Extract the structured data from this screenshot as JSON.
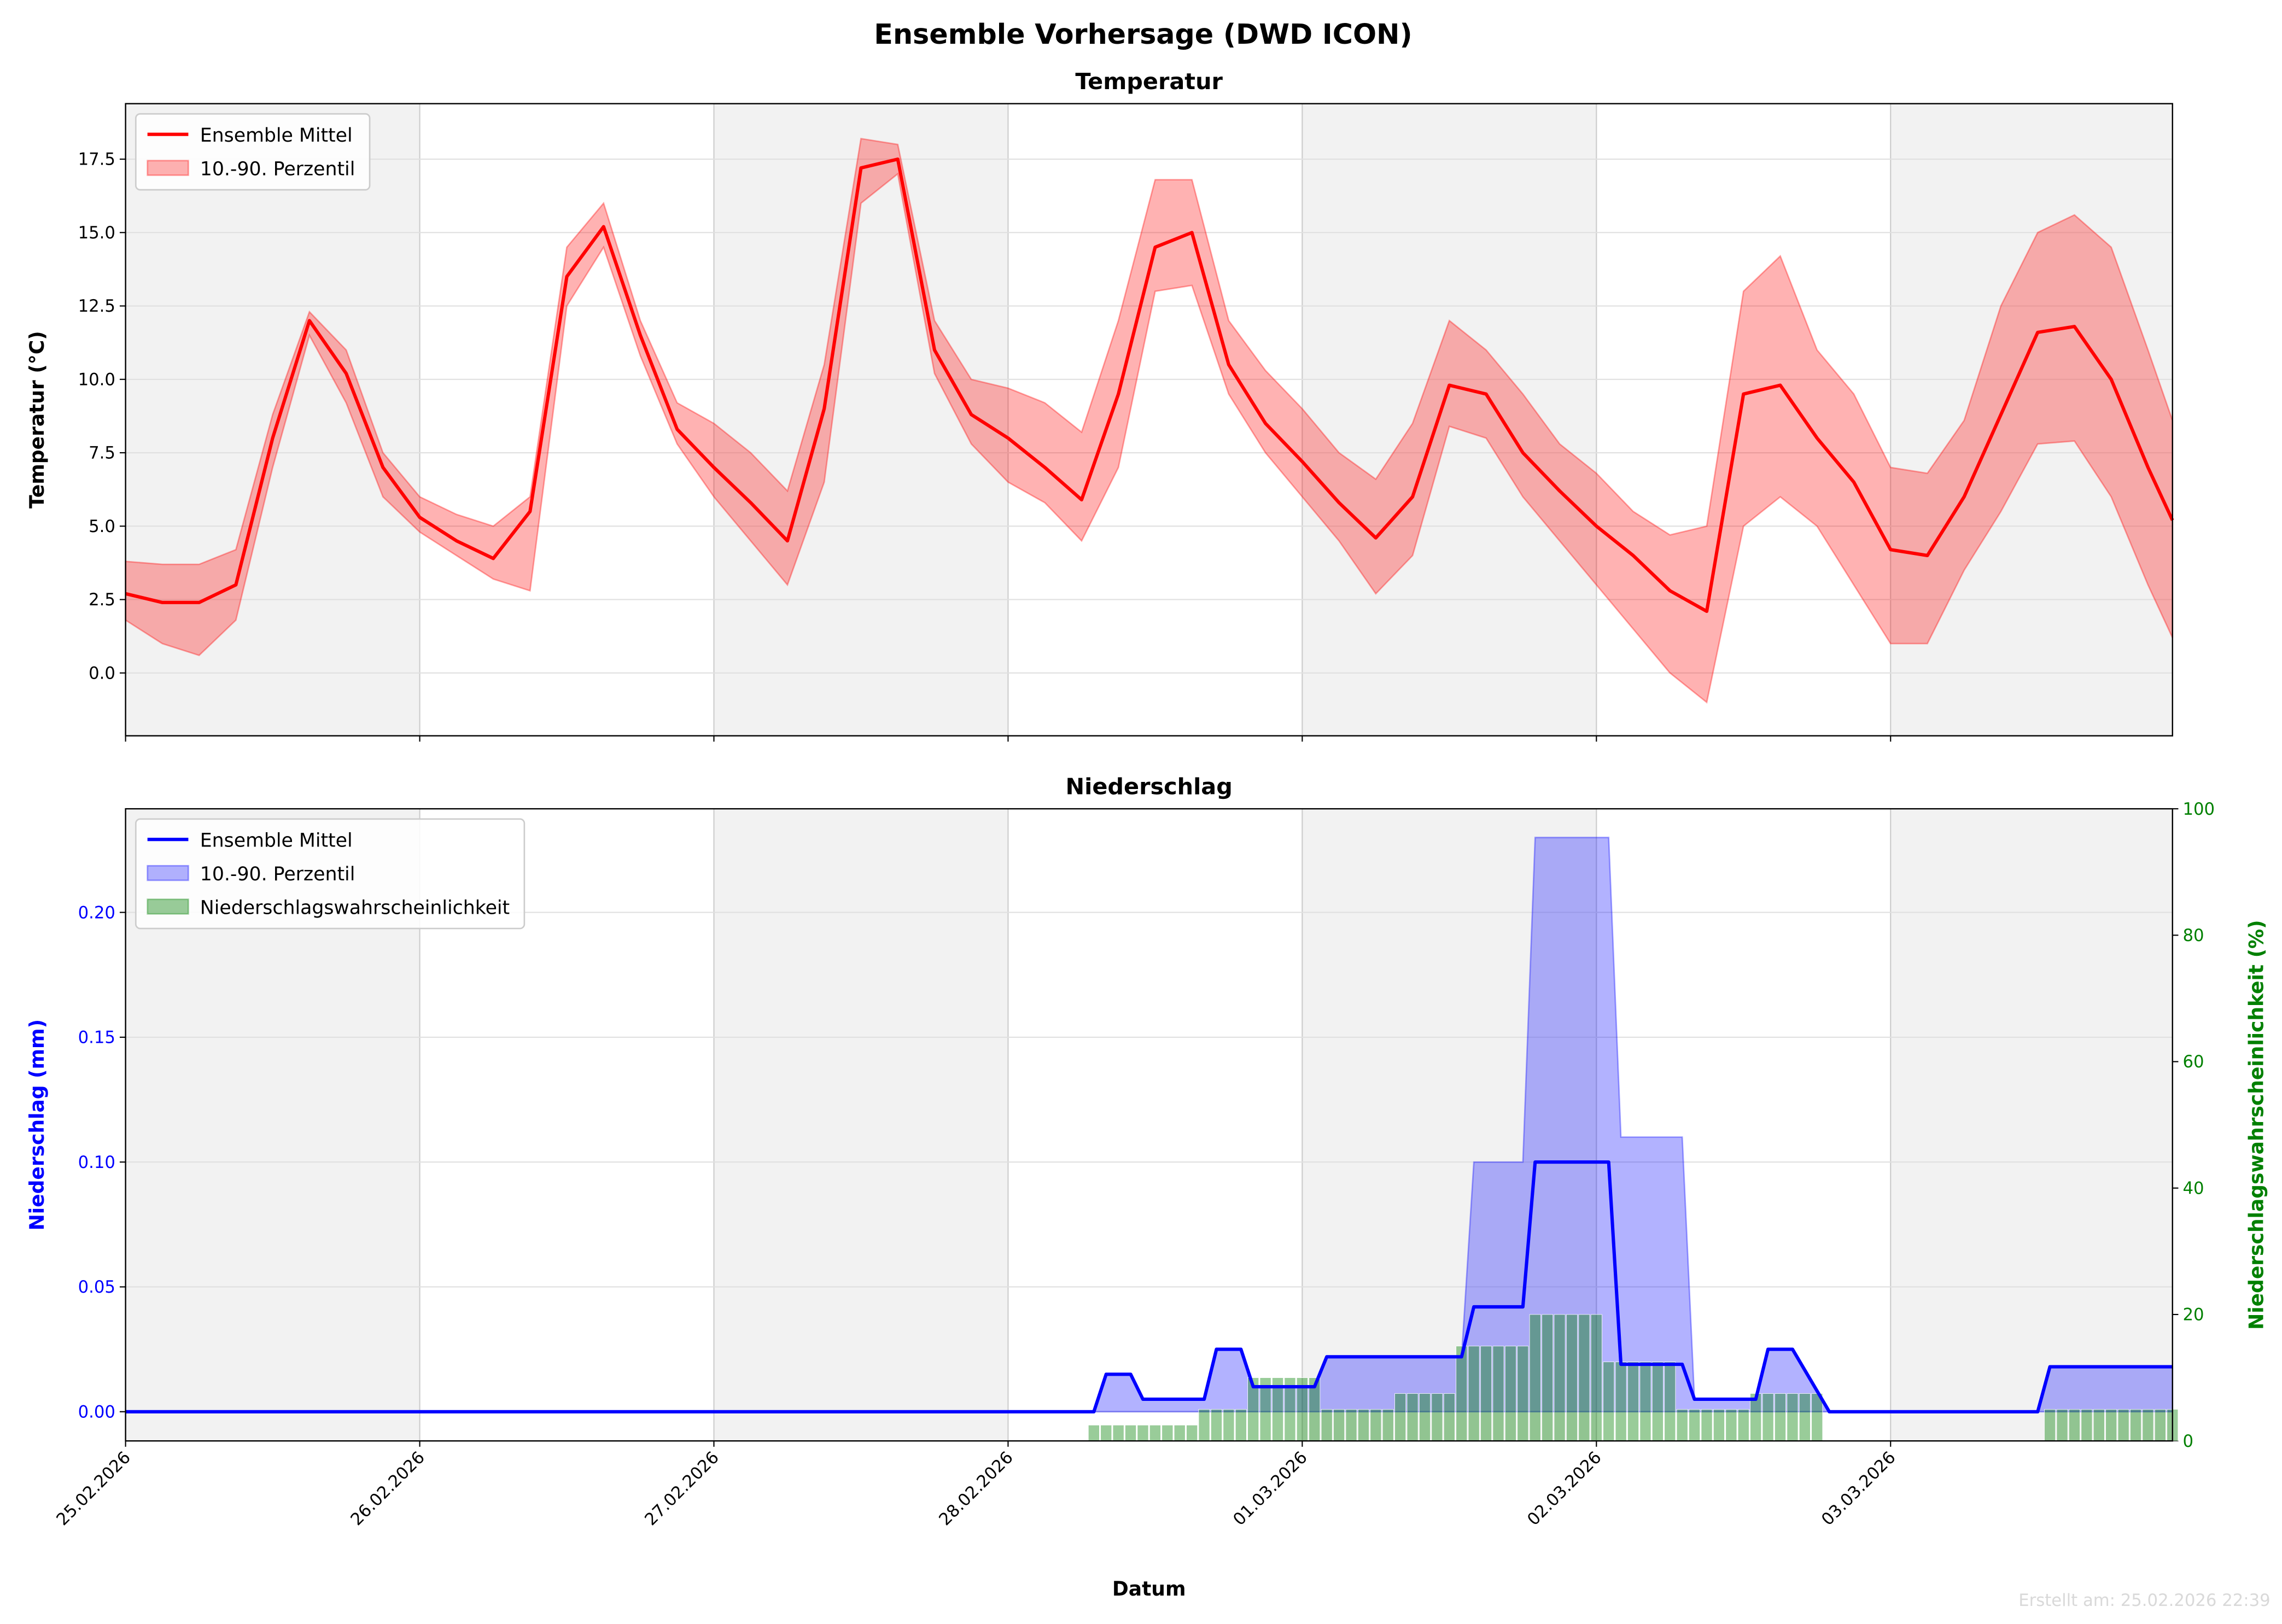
{
  "title": "Ensemble Vorhersage (DWD ICON)",
  "x_label": "Datum",
  "footer": "Erstellt am: 25.02.2026 22:39",
  "chart_data": [
    {
      "type": "line",
      "title": "Temperatur",
      "y_label": "Temperatur (°C)",
      "legend": "upper left",
      "grid": true,
      "x": [
        0,
        3,
        6,
        9,
        12,
        15,
        18,
        21,
        24,
        27,
        30,
        33,
        36,
        39,
        42,
        45,
        48,
        51,
        54,
        57,
        60,
        63,
        66,
        69,
        72,
        75,
        78,
        81,
        84,
        87,
        90,
        93,
        96,
        99,
        102,
        105,
        108,
        111,
        114,
        117,
        120,
        123,
        126,
        129,
        132,
        135,
        138,
        141,
        144,
        147,
        150,
        153,
        156,
        159,
        162,
        165,
        167
      ],
      "xlim": [
        0,
        167
      ],
      "xticks": [
        {
          "value": 0,
          "label": "25.02.2026"
        },
        {
          "value": 24,
          "label": "26.02.2026"
        },
        {
          "value": 48,
          "label": "27.02.2026"
        },
        {
          "value": 72,
          "label": "28.02.2026"
        },
        {
          "value": 96,
          "label": "01.03.2026"
        },
        {
          "value": 120,
          "label": "02.03.2026"
        },
        {
          "value": 144,
          "label": "03.03.2026"
        }
      ],
      "ylim": [
        -2.14,
        19.39
      ],
      "yticks": [
        {
          "value": 0,
          "label": "0.0"
        },
        2.5,
        {
          "value": 5,
          "label": "5.0"
        },
        7.5,
        {
          "value": 10,
          "label": "10.0"
        },
        12.5,
        {
          "value": 15,
          "label": "15.0"
        },
        17.5
      ],
      "series": [
        {
          "name": "Ensemble Mittel",
          "color": "#ff0000",
          "values": [
            2.7,
            2.4,
            2.4,
            3.0,
            8.0,
            12.0,
            10.2,
            7.0,
            5.3,
            4.5,
            3.9,
            5.5,
            13.5,
            15.2,
            11.5,
            8.3,
            7.0,
            5.8,
            4.5,
            9.0,
            17.2,
            17.5,
            11.0,
            8.8,
            8.0,
            7.0,
            5.9,
            9.5,
            14.5,
            15.0,
            10.5,
            8.5,
            7.2,
            5.8,
            4.6,
            6.0,
            9.8,
            9.5,
            7.5,
            6.2,
            5.0,
            4.0,
            2.8,
            2.1,
            9.5,
            9.8,
            8.0,
            6.5,
            4.2,
            4.0,
            6.0,
            8.8,
            11.6,
            11.8,
            10.0,
            7.0,
            5.2
          ]
        }
      ],
      "band": {
        "name": "10.-90. Perzentil",
        "color": "#ff0000",
        "upper": [
          3.8,
          3.7,
          3.7,
          4.2,
          8.8,
          12.3,
          11.0,
          7.5,
          6.0,
          5.4,
          5.0,
          6.0,
          14.5,
          16.0,
          12.0,
          9.2,
          8.5,
          7.5,
          6.2,
          10.5,
          18.2,
          18.0,
          12.0,
          10.0,
          9.7,
          9.2,
          8.2,
          12.0,
          16.8,
          16.8,
          12.0,
          10.3,
          9.0,
          7.5,
          6.6,
          8.5,
          12.0,
          11.0,
          9.5,
          7.8,
          6.8,
          5.5,
          4.7,
          5.0,
          13.0,
          14.2,
          11.0,
          9.5,
          7.0,
          6.8,
          8.6,
          12.5,
          15.0,
          15.6,
          14.5,
          11.0,
          8.6
        ],
        "lower": [
          1.8,
          1.0,
          0.6,
          1.8,
          7.0,
          11.5,
          9.2,
          6.0,
          4.8,
          4.0,
          3.2,
          2.8,
          12.5,
          14.5,
          10.8,
          7.8,
          6.0,
          4.5,
          3.0,
          6.5,
          16.0,
          17.0,
          10.2,
          7.8,
          6.5,
          5.8,
          4.5,
          7.0,
          13.0,
          13.2,
          9.5,
          7.5,
          6.0,
          4.5,
          2.7,
          4.0,
          8.4,
          8.0,
          6.0,
          4.5,
          3.0,
          1.5,
          0.0,
          -1.0,
          5.0,
          6.0,
          5.0,
          3.0,
          1.0,
          1.0,
          3.5,
          5.5,
          7.8,
          7.9,
          6.0,
          3.0,
          1.2
        ]
      }
    },
    {
      "type": "line",
      "title": "Niederschlag",
      "y_label": "Niederschlag (mm)",
      "y2_label": "Niederschlagswahrscheinlichkeit (%)",
      "legend": "upper left",
      "grid": true,
      "x": [
        0,
        79,
        80,
        82,
        83,
        88,
        89,
        91,
        92,
        97,
        98,
        109,
        110,
        114,
        115,
        120,
        121,
        122,
        127,
        128,
        133,
        134,
        136,
        139,
        156,
        157,
        167
      ],
      "xlim": [
        0,
        167
      ],
      "xticks": [
        {
          "value": 0,
          "label": "25.02.2026"
        },
        {
          "value": 24,
          "label": "26.02.2026"
        },
        {
          "value": 48,
          "label": "27.02.2026"
        },
        {
          "value": 72,
          "label": "28.02.2026"
        },
        {
          "value": 96,
          "label": "01.03.2026"
        },
        {
          "value": 120,
          "label": "02.03.2026"
        },
        {
          "value": 144,
          "label": "03.03.2026"
        }
      ],
      "ylim": [
        -0.0117,
        0.2415
      ],
      "yticks": [
        {
          "value": 0,
          "label": "0.00"
        },
        {
          "value": 0.05,
          "label": "0.05"
        },
        {
          "value": 0.1,
          "label": "0.10"
        },
        {
          "value": 0.15,
          "label": "0.15"
        },
        {
          "value": 0.2,
          "label": "0.20"
        }
      ],
      "y2lim": [
        0,
        100
      ],
      "y2ticks": [
        0,
        20,
        40,
        60,
        80,
        100
      ],
      "series": [
        {
          "name": "Ensemble Mittel",
          "color": "#0000ff",
          "values": [
            0,
            0,
            0.015,
            0.015,
            0.005,
            0.005,
            0.025,
            0.025,
            0.01,
            0.01,
            0.022,
            0.022,
            0.042,
            0.042,
            0.1,
            0.1,
            0.1,
            0.019,
            0.019,
            0.005,
            0.005,
            0.025,
            0.025,
            0,
            0,
            0.018,
            0.018
          ]
        },
        {
          "name": "Niederschlagswahrscheinlichkeit",
          "type": "bar",
          "axis": "y2",
          "color": "#008000",
          "x": [
            79,
            80,
            81,
            82,
            83,
            84,
            85,
            86,
            87,
            88,
            89,
            90,
            91,
            92,
            93,
            94,
            95,
            96,
            97,
            98,
            99,
            100,
            101,
            102,
            103,
            104,
            105,
            106,
            107,
            108,
            109,
            110,
            111,
            112,
            113,
            114,
            115,
            116,
            117,
            118,
            119,
            120,
            121,
            122,
            123,
            124,
            125,
            126,
            127,
            128,
            129,
            130,
            131,
            132,
            133,
            134,
            135,
            136,
            137,
            138,
            157,
            158,
            159,
            160,
            161,
            162,
            163,
            164,
            165,
            166,
            167
          ],
          "values": [
            2.5,
            2.5,
            2.5,
            2.5,
            2.5,
            2.5,
            2.5,
            2.5,
            2.5,
            5,
            5,
            5,
            5,
            10,
            10,
            10,
            10,
            10,
            10,
            5,
            5,
            5,
            5,
            5,
            5,
            7.5,
            7.5,
            7.5,
            7.5,
            7.5,
            15,
            15,
            15,
            15,
            15,
            15,
            20,
            20,
            20,
            20,
            20,
            20,
            12.5,
            12.5,
            12.5,
            12.5,
            12.5,
            12.5,
            5,
            5,
            5,
            5,
            5,
            5,
            7.5,
            7.5,
            7.5,
            7.5,
            7.5,
            7.5,
            5,
            5,
            5,
            5,
            5,
            5,
            5,
            5,
            5,
            5,
            5
          ]
        }
      ],
      "band": {
        "name": "10.-90. Perzentil",
        "color": "#0000ff",
        "upper": [
          0,
          0,
          0.015,
          0.015,
          0.005,
          0.005,
          0.025,
          0.025,
          0.01,
          0.01,
          0.022,
          0.022,
          0.1,
          0.1,
          0.23,
          0.23,
          0.23,
          0.11,
          0.11,
          0.005,
          0.005,
          0.025,
          0.025,
          0,
          0,
          0.018,
          0.018
        ],
        "lower": [
          0,
          0,
          0,
          0,
          0,
          0,
          0,
          0,
          0,
          0,
          0,
          0,
          0,
          0,
          0,
          0,
          0,
          0,
          0,
          0,
          0,
          0,
          0,
          0,
          0,
          0,
          0
        ]
      }
    }
  ]
}
